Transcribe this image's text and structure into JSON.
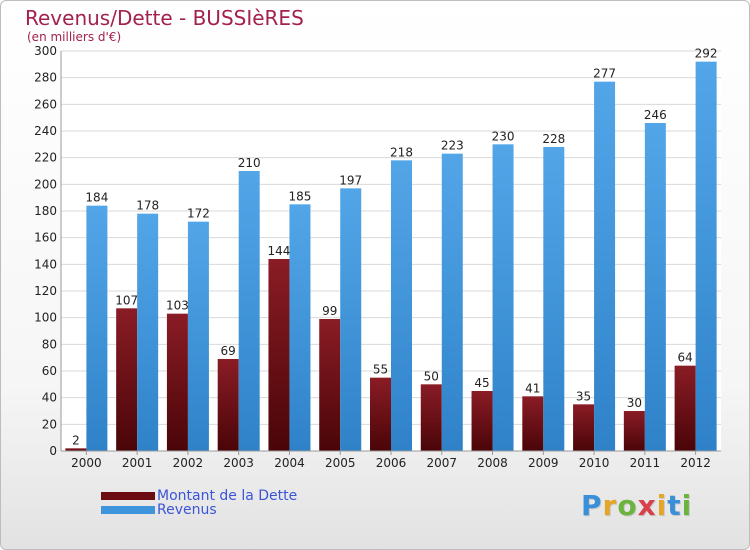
{
  "title": "Revenus/Dette - BUSSIèRES",
  "subtitle": "(en milliers d'€)",
  "colors": {
    "dette": "#6b0c12",
    "revenus": "#3f95dc",
    "title": "#a3214b",
    "legend_text": "#3a55d8"
  },
  "logo": {
    "text": "Proxiti",
    "letter_colors": [
      "#3a8fd9",
      "#e2a62b",
      "#6cb33f",
      "#d8414a",
      "#e2a62b",
      "#3a8fd9",
      "#6cb33f"
    ]
  },
  "chart_data": {
    "type": "bar",
    "title": "Revenus/Dette - BUSSIèRES",
    "subtitle": "(en milliers d'€)",
    "categories": [
      "2000",
      "2001",
      "2002",
      "2003",
      "2004",
      "2005",
      "2006",
      "2007",
      "2008",
      "2009",
      "2010",
      "2011",
      "2012"
    ],
    "series": [
      {
        "name": "Montant de la Dette",
        "values": [
          2,
          107,
          103,
          69,
          144,
          99,
          55,
          50,
          45,
          41,
          35,
          30,
          64
        ]
      },
      {
        "name": "Revenus",
        "values": [
          184,
          178,
          172,
          210,
          185,
          197,
          218,
          223,
          230,
          228,
          277,
          246,
          292
        ]
      }
    ],
    "ylim": [
      0,
      300
    ],
    "yticks": [
      0,
      20,
      40,
      60,
      80,
      100,
      120,
      140,
      160,
      180,
      200,
      220,
      240,
      260,
      280,
      300
    ],
    "grid": true,
    "legend": "bottom-left"
  }
}
